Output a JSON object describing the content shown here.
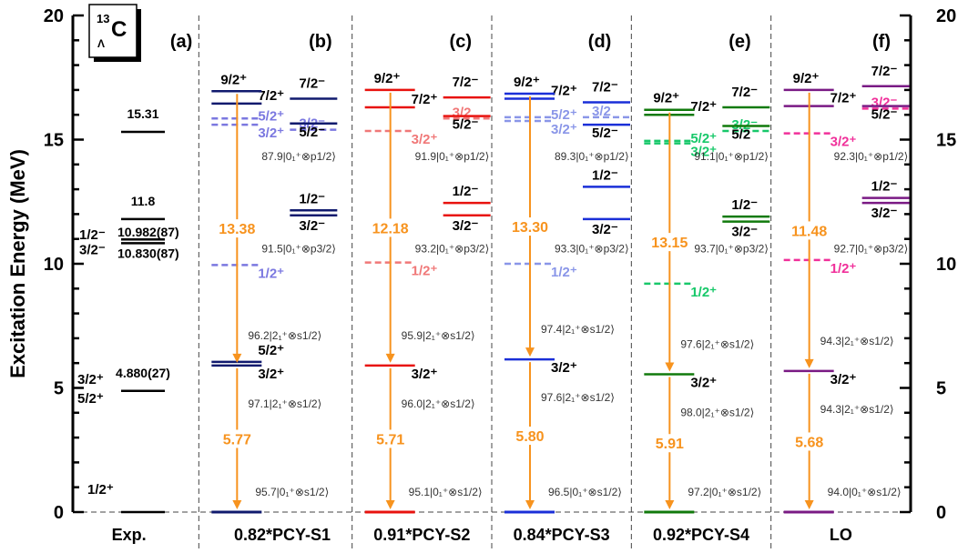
{
  "chart_data": {
    "type": "level-scheme",
    "ylabel": "Excitation Energy (MeV)",
    "ylim": [
      0,
      20
    ],
    "yticks": [
      0,
      5,
      10,
      15,
      20
    ],
    "nucleus": {
      "mass": "13",
      "hyper": "Λ",
      "symbol": "C"
    },
    "columns": [
      {
        "label": "(a)",
        "xlabel": "Exp.",
        "color": "#000000",
        "levels": [
          {
            "e": 0.0,
            "jp": "1/2⁺",
            "value": ""
          },
          {
            "e": 4.88,
            "jp": "3/2⁺",
            "jp2": "5/2⁺",
            "value": "4.880(27)"
          },
          {
            "e": 10.83,
            "jp": "3/2⁻",
            "value": "10.830(87)"
          },
          {
            "e": 10.982,
            "jp": "1/2⁻",
            "value": "10.982(87)"
          },
          {
            "e": 11.8,
            "value": "11.8"
          },
          {
            "e": 15.31,
            "value": "15.31"
          }
        ]
      },
      {
        "label": "(b)",
        "xlabel": "0.82*PCY-S1",
        "color": "#101a6e",
        "light": "#7b78e0",
        "levels": [
          {
            "e": 0.0,
            "side": "L"
          },
          {
            "e": 5.9,
            "side": "L",
            "jp": "3/2⁺"
          },
          {
            "e": 6.05,
            "side": "L",
            "jp": "5/2⁺"
          },
          {
            "e": 9.95,
            "side": "L",
            "dashed": true,
            "jp": "1/2⁺"
          },
          {
            "e": 15.6,
            "side": "L",
            "dashed": true,
            "jp": "3/2⁺"
          },
          {
            "e": 15.85,
            "side": "L",
            "dashed": true,
            "jp": "5/2⁺"
          },
          {
            "e": 16.45,
            "side": "L",
            "jp": "7/2⁺"
          },
          {
            "e": 16.95,
            "side": "L",
            "jp": "9/2⁺"
          },
          {
            "e": 11.95,
            "side": "R",
            "jp": "3/2⁻"
          },
          {
            "e": 12.15,
            "side": "R",
            "jp": "1/2⁻"
          },
          {
            "e": 15.4,
            "side": "R",
            "dashed": true,
            "jp": "3/2⁻"
          },
          {
            "e": 15.65,
            "side": "R",
            "jp": "5/2⁻"
          },
          {
            "e": 16.65,
            "side": "R",
            "jp": "7/2⁻"
          }
        ],
        "arrows": [
          "5.77",
          "13.38"
        ],
        "configs": [
          "95.7|0₁⁺⊗s1/2⟩",
          "96.2|2₁⁺⊗s1/2⟩",
          "97.1|2₁⁺⊗s1/2⟩",
          "91.5|0₁⁺⊗p3/2⟩",
          "87.9|0₁⁺⊗p1/2⟩"
        ]
      },
      {
        "label": "(c)",
        "xlabel": "0.91*PCY-S2",
        "color": "#e8120e",
        "light": "#f07878",
        "levels": [
          {
            "e": 0.0,
            "side": "L"
          },
          {
            "e": 5.9,
            "side": "L",
            "jp": "3/2⁺"
          },
          {
            "e": 10.05,
            "side": "L",
            "dashed": true,
            "jp": "1/2⁺"
          },
          {
            "e": 15.35,
            "side": "L",
            "dashed": true,
            "jp": "3/2⁺"
          },
          {
            "e": 16.3,
            "side": "L",
            "jp": "7/2⁺"
          },
          {
            "e": 17.0,
            "side": "L",
            "jp": "9/2⁺"
          },
          {
            "e": 11.95,
            "side": "R",
            "jp": "3/2⁻"
          },
          {
            "e": 12.45,
            "side": "R",
            "jp": "1/2⁻"
          },
          {
            "e": 15.85,
            "side": "R",
            "dashed": true,
            "jp": "3/2"
          },
          {
            "e": 15.95,
            "side": "R",
            "jp": "5/2⁻"
          },
          {
            "e": 16.7,
            "side": "R",
            "jp": "7/2⁻"
          }
        ],
        "arrows": [
          "5.71",
          "12.18"
        ],
        "configs": [
          "95.1|0₁⁺⊗s1/2⟩",
          "95.9|2₁⁺⊗s1/2⟩",
          "96.0|2₁⁺⊗s1/2⟩",
          "93.2|0₁⁺⊗p3/2⟩",
          "91.9|0₁⁺⊗p1/2⟩"
        ]
      },
      {
        "label": "(d)",
        "xlabel": "0.84*PCY-S3",
        "color": "#1a2fd8",
        "light": "#8a96e8",
        "levels": [
          {
            "e": 0.0,
            "side": "L"
          },
          {
            "e": 6.15,
            "side": "L",
            "jp": "3/2⁺"
          },
          {
            "e": 10.0,
            "side": "L",
            "dashed": true,
            "jp": "1/2⁺"
          },
          {
            "e": 15.75,
            "side": "L",
            "dashed": true,
            "jp": "3/2⁺"
          },
          {
            "e": 15.9,
            "side": "L",
            "dashed": true,
            "jp": "5/2⁺"
          },
          {
            "e": 16.65,
            "side": "L",
            "jp": "7/2⁺"
          },
          {
            "e": 16.85,
            "side": "L",
            "jp": "9/2⁺"
          },
          {
            "e": 11.8,
            "side": "R",
            "jp": "3/2⁻"
          },
          {
            "e": 13.1,
            "side": "R",
            "jp": "1/2⁻"
          },
          {
            "e": 15.6,
            "side": "R",
            "jp": "5/2⁻"
          },
          {
            "e": 15.9,
            "side": "R",
            "dashed": true,
            "jp": "3/2"
          },
          {
            "e": 16.5,
            "side": "R",
            "jp": "7/2⁻"
          }
        ],
        "arrows": [
          "5.80",
          "13.30"
        ],
        "configs": [
          "96.5|0₁⁺⊗s1/2⟩",
          "97.4|2₁⁺⊗s1/2⟩",
          "97.6|2₁⁺⊗s1/2⟩",
          "93.3|0₁⁺⊗p3/2⟩",
          "89.3|0₁⁺⊗p1/2⟩"
        ]
      },
      {
        "label": "(e)",
        "xlabel": "0.92*PCY-S4",
        "color": "#117a0c",
        "light": "#18c86a",
        "levels": [
          {
            "e": 0.0,
            "side": "L"
          },
          {
            "e": 5.55,
            "side": "L",
            "jp": "3/2⁺"
          },
          {
            "e": 9.2,
            "side": "L",
            "dashed": true,
            "jp": "1/2⁺"
          },
          {
            "e": 14.85,
            "side": "L",
            "dashed": true,
            "jp": "3/2⁺"
          },
          {
            "e": 14.95,
            "side": "L",
            "dashed": true,
            "jp": "5/2⁺"
          },
          {
            "e": 16.0,
            "side": "L",
            "jp": "7/2⁺"
          },
          {
            "e": 16.2,
            "side": "L",
            "jp": "9/2⁺"
          },
          {
            "e": 11.7,
            "side": "R",
            "jp": "3/2⁻"
          },
          {
            "e": 11.9,
            "side": "R",
            "jp": "1/2⁻"
          },
          {
            "e": 15.35,
            "side": "R",
            "dashed": true,
            "jp": "3/2⁻"
          },
          {
            "e": 15.55,
            "side": "R",
            "jp": "5/2"
          },
          {
            "e": 16.3,
            "side": "R",
            "jp": "7/2⁻"
          }
        ],
        "arrows": [
          "5.91",
          "13.15"
        ],
        "configs": [
          "97.2|0₁⁺⊗s1/2⟩",
          "97.6|2₁⁺⊗s1/2⟩",
          "98.0|2₁⁺⊗s1/2⟩",
          "93.7|0₁⁺⊗p3/2⟩",
          "91.1|0₁⁺⊗p1/2⟩"
        ]
      },
      {
        "label": "(f)",
        "xlabel": "LO",
        "color": "#7a1a84",
        "light": "#f0309a",
        "levels": [
          {
            "e": 0.0,
            "side": "L"
          },
          {
            "e": 5.68,
            "side": "L",
            "jp": "3/2⁺"
          },
          {
            "e": 10.15,
            "side": "L",
            "dashed": true,
            "jp": "1/2⁺"
          },
          {
            "e": 15.25,
            "side": "L",
            "dashed": true,
            "jp": "3/2⁺"
          },
          {
            "e": 16.35,
            "side": "L",
            "jp": "7/2⁺"
          },
          {
            "e": 17.0,
            "side": "L",
            "jp": "9/2⁺"
          },
          {
            "e": 12.45,
            "side": "R",
            "jp": "3/2⁻"
          },
          {
            "e": 12.65,
            "side": "R",
            "jp": "1/2⁻"
          },
          {
            "e": 16.25,
            "side": "R",
            "dashed": true,
            "jp": "3/2⁻"
          },
          {
            "e": 16.35,
            "side": "R",
            "jp": "5/2⁻"
          },
          {
            "e": 17.15,
            "side": "R",
            "jp": "7/2⁻"
          }
        ],
        "arrows": [
          "5.68",
          "11.48"
        ],
        "configs": [
          "94.0|0₁⁺⊗s1/2⟩",
          "94.3|2₁⁺⊗s1/2⟩",
          "94.3|2₁⁺⊗s1/2⟩",
          "92.7|0₁⁺⊗p3/2⟩",
          "92.3|0₁⁺⊗p1/2⟩"
        ]
      }
    ],
    "arrow_color": "#f7931e"
  }
}
